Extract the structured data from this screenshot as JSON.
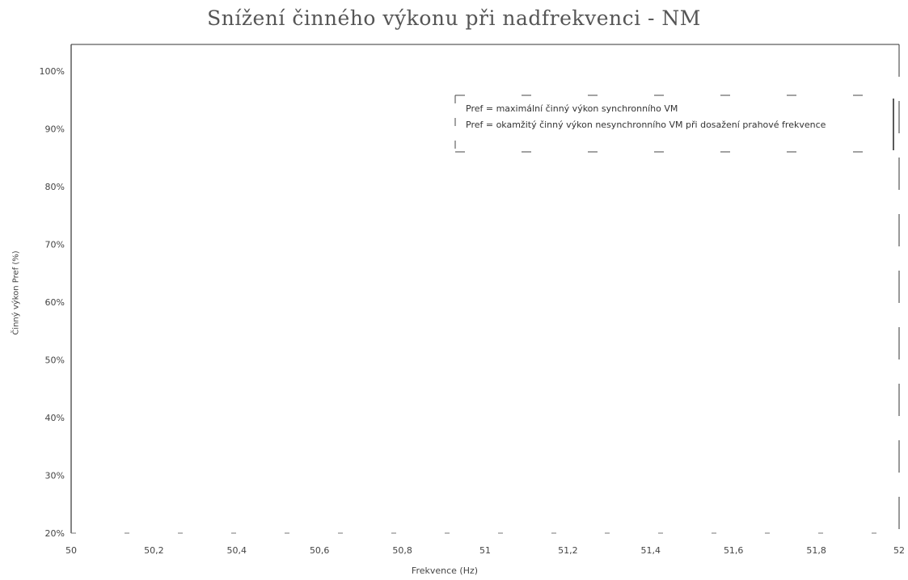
{
  "chart_data": {
    "type": "line",
    "title": "Snížení činného výkonu při nadfrekvenci - NM",
    "xlabel": "Frekvence (Hz)",
    "ylabel": "Činný výkon Pref (%)",
    "xlim": [
      50,
      52
    ],
    "ylim": [
      20,
      100
    ],
    "x_ticks": [
      "50",
      "50,2",
      "50,4",
      "50,6",
      "50,8",
      "51",
      "51,2",
      "51,4",
      "51,6",
      "51,8",
      "52"
    ],
    "y_ticks": [
      "20%",
      "30%",
      "40%",
      "50%",
      "60%",
      "70%",
      "80%",
      "90%",
      "100%"
    ],
    "legend": [
      "Pref = maximální činný výkon synchronního VM",
      "Pref = okamžitý činný výkon nesynchronního VM při dosažení prahové frekvence"
    ],
    "legend_position": "top-right",
    "grid": false,
    "series": []
  }
}
